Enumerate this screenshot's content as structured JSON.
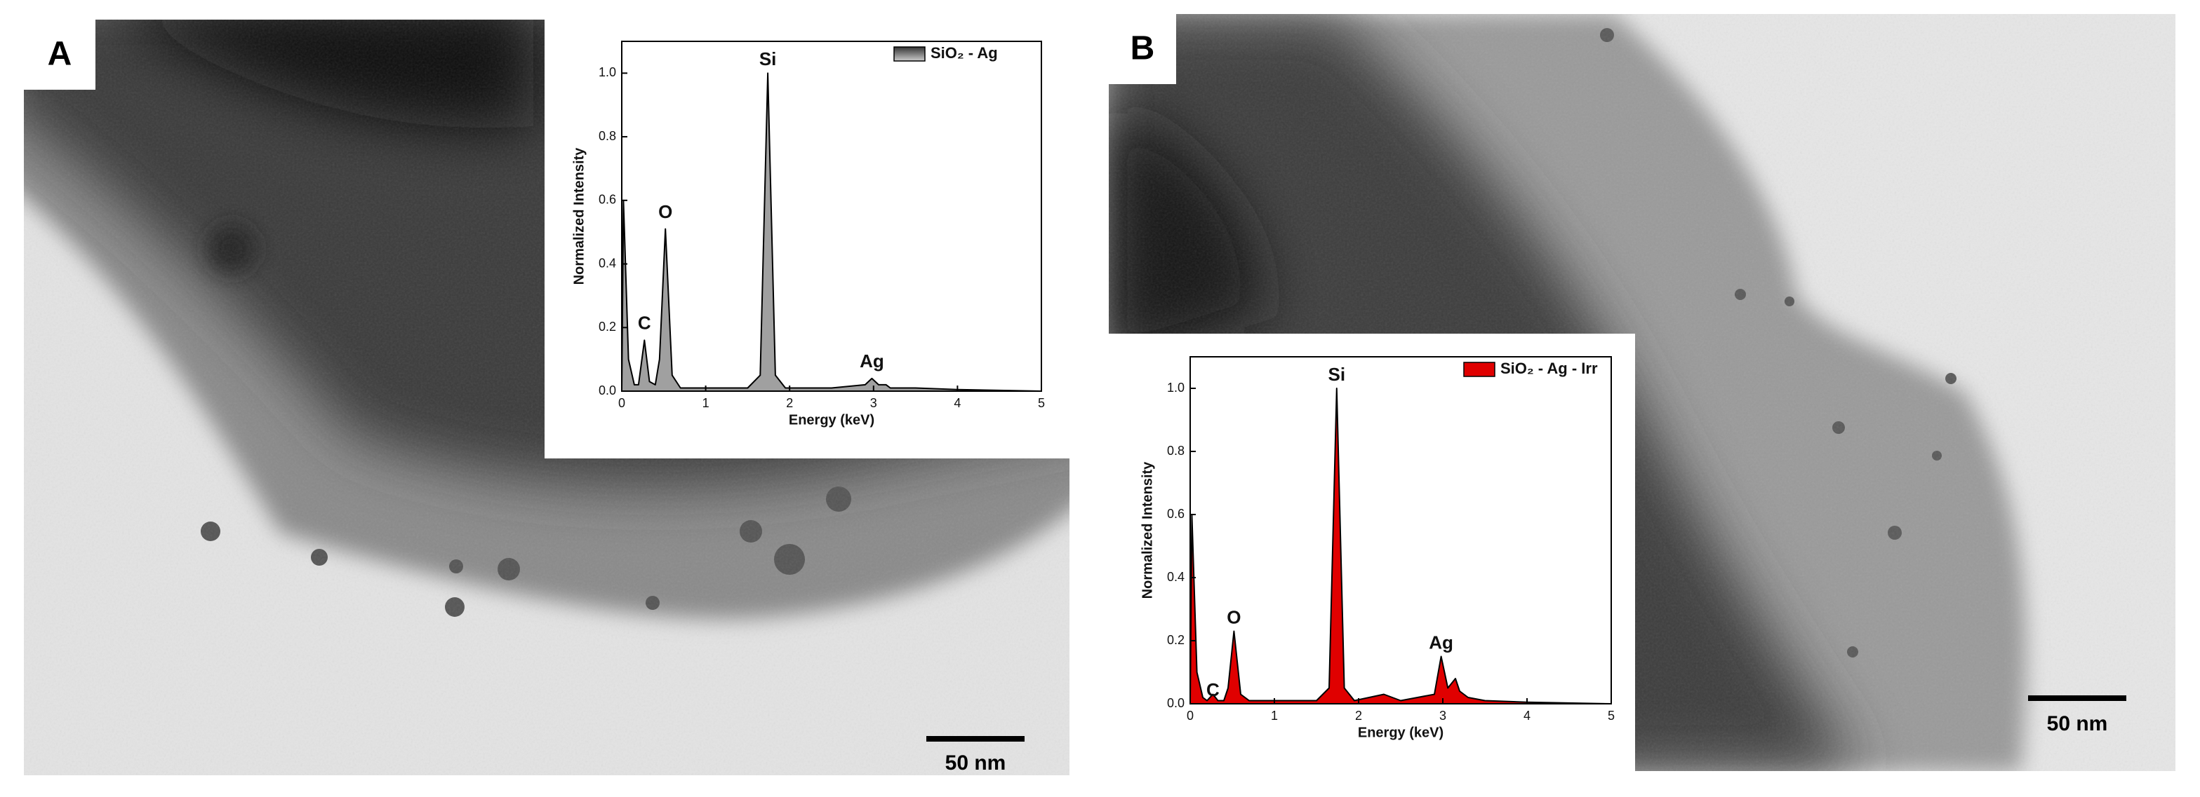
{
  "panels": [
    {
      "label": "A",
      "scale_bar": "50 nm"
    },
    {
      "label": "B",
      "scale_bar": "50 nm"
    }
  ],
  "chart_data": [
    {
      "type": "area",
      "xlabel": "Energy (keV)",
      "ylabel": "Normalized Intensity",
      "x": [
        0,
        0.02,
        0.08,
        0.15,
        0.2,
        0.27,
        0.33,
        0.4,
        0.45,
        0.52,
        0.6,
        0.7,
        1.0,
        1.5,
        1.65,
        1.74,
        1.83,
        1.95,
        2.5,
        2.9,
        2.98,
        3.06,
        3.15,
        3.2,
        3.3,
        3.5,
        4,
        5
      ],
      "series": [
        {
          "name": "SiO₂ - Ag",
          "color": "#a0a0a0",
          "values": [
            0,
            0.6,
            0.1,
            0.02,
            0.02,
            0.16,
            0.03,
            0.02,
            0.1,
            0.51,
            0.05,
            0.01,
            0.01,
            0.01,
            0.05,
            1.0,
            0.05,
            0.01,
            0.01,
            0.02,
            0.04,
            0.02,
            0.02,
            0.01,
            0.01,
            0.01,
            0.005,
            0
          ]
        }
      ],
      "annotations": [
        "Si",
        "O",
        "C",
        "Ag"
      ],
      "xlim": [
        0,
        5
      ],
      "ylim": [
        0,
        1.1
      ],
      "xticks": [
        0,
        1,
        2,
        3,
        4,
        5
      ],
      "yticks": [
        {
          "value": 0,
          "label": "0.0"
        },
        0.2,
        0.4,
        0.6,
        0.8,
        {
          "value": 1,
          "label": "1.0"
        }
      ],
      "legend": "upper right"
    },
    {
      "type": "area",
      "xlabel": "Energy (keV)",
      "ylabel": "Normalized Intensity",
      "x": [
        0,
        0.02,
        0.08,
        0.15,
        0.2,
        0.27,
        0.33,
        0.4,
        0.45,
        0.52,
        0.6,
        0.7,
        1.0,
        1.5,
        1.65,
        1.74,
        1.83,
        1.95,
        2.3,
        2.5,
        2.9,
        2.98,
        3.06,
        3.15,
        3.2,
        3.3,
        3.5,
        4,
        5
      ],
      "series": [
        {
          "name": "SiO₂ - Ag - Irr",
          "color": "#e00000",
          "values": [
            0,
            0.6,
            0.1,
            0.02,
            0.01,
            0.03,
            0.01,
            0.01,
            0.05,
            0.23,
            0.03,
            0.01,
            0.01,
            0.01,
            0.05,
            1.0,
            0.05,
            0.01,
            0.03,
            0.01,
            0.03,
            0.15,
            0.05,
            0.08,
            0.04,
            0.02,
            0.01,
            0.005,
            0
          ]
        }
      ],
      "annotations": [
        "Si",
        "O",
        "C",
        "Ag"
      ],
      "xlim": [
        0,
        5
      ],
      "ylim": [
        0,
        1.1
      ],
      "xticks": [
        0,
        1,
        2,
        3,
        4,
        5
      ],
      "yticks": [
        {
          "value": 0,
          "label": "0.0"
        },
        0.2,
        0.4,
        0.6,
        0.8,
        {
          "value": 1,
          "label": "1.0"
        }
      ],
      "legend": "upper right"
    }
  ]
}
